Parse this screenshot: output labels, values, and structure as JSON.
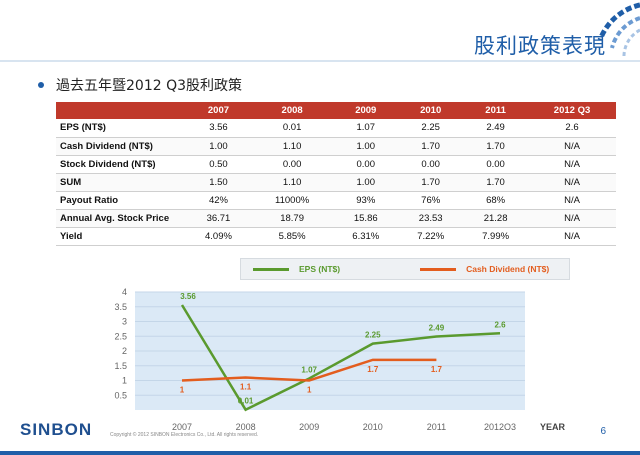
{
  "slide": {
    "title": "股利政策表現",
    "bullet": "過去五年暨2012 Q3股利政策",
    "page_number": "6",
    "footer_logo": "SINBON",
    "copyright": "Copyright © 2012 SINBON Electronics Co., Ltd. All rights reserved.",
    "accent_color": "#1f5ea8",
    "header_color": "#c0392b"
  },
  "table": {
    "columns": [
      "",
      "2007",
      "2008",
      "2009",
      "2010",
      "2011",
      "2012 Q3"
    ],
    "rows": [
      {
        "label": "EPS (NT$)",
        "cells": [
          "3.56",
          "0.01",
          "1.07",
          "2.25",
          "2.49",
          "2.6"
        ]
      },
      {
        "label": "Cash Dividend (NT$)",
        "cells": [
          "1.00",
          "1.10",
          "1.00",
          "1.70",
          "1.70",
          "N/A"
        ]
      },
      {
        "label": "Stock Dividend  (NT$)",
        "cells": [
          "0.50",
          "0.00",
          "0.00",
          "0.00",
          "0.00",
          "N/A"
        ]
      },
      {
        "label": "SUM",
        "cells": [
          "1.50",
          "1.10",
          "1.00",
          "1.70",
          "1.70",
          "N/A"
        ]
      },
      {
        "label": "Payout Ratio",
        "cells": [
          "42%",
          "11000%",
          "93%",
          "76%",
          "68%",
          "N/A"
        ]
      },
      {
        "label": "Annual Avg. Stock Price",
        "cells": [
          "36.71",
          "18.79",
          "15.86",
          "23.53",
          "21.28",
          "N/A"
        ]
      },
      {
        "label": "Yield",
        "cells": [
          "4.09%",
          "5.85%",
          "6.31%",
          "7.22%",
          "7.99%",
          "N/A"
        ]
      }
    ]
  },
  "chart_data": {
    "type": "line",
    "categories": [
      "2007",
      "2008",
      "2009",
      "2010",
      "2011",
      "2012Q3"
    ],
    "xlabel": "YEAR",
    "ylim": [
      0,
      4
    ],
    "yticks": [
      "0.5",
      "1",
      "1.5",
      "2",
      "2.5",
      "3",
      "3.5",
      "4"
    ],
    "legend_position": "top",
    "series": [
      {
        "name": "EPS (NT$)",
        "color": "#5a9a2e",
        "values": [
          3.56,
          0.01,
          1.07,
          2.25,
          2.49,
          2.6
        ],
        "labels": [
          "3.56",
          "0.01",
          "1.07",
          "2.25",
          "2.49",
          "2.6"
        ]
      },
      {
        "name": "Cash Dividend (NT$)",
        "color": "#e35d1e",
        "values": [
          1,
          1.1,
          1,
          1.7,
          1.7,
          null
        ],
        "labels": [
          "1",
          "1.1",
          "1",
          "1.7",
          "1.7",
          ""
        ]
      }
    ]
  }
}
